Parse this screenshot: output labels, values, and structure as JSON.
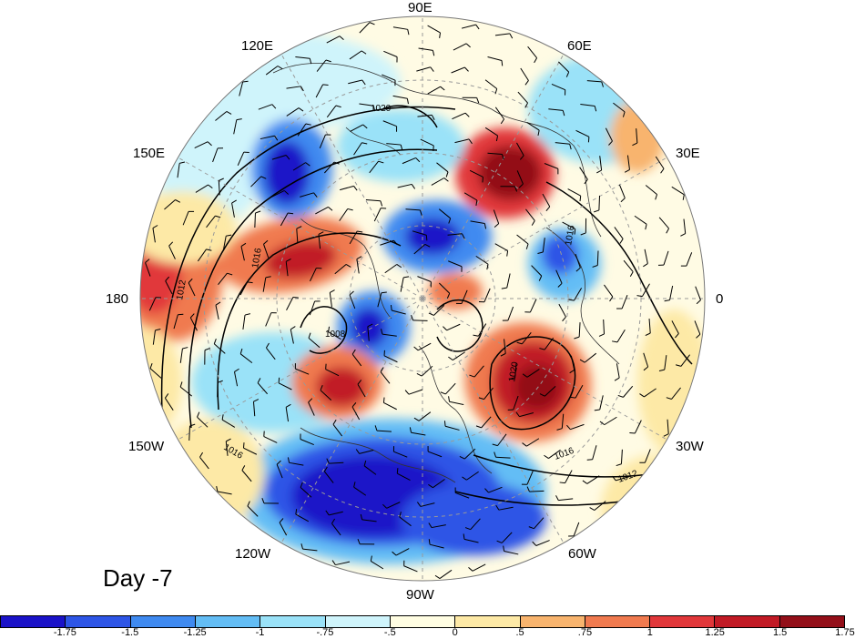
{
  "panel_label": "Day -7",
  "lon_labels": [
    "90E",
    "120E",
    "60E",
    "150E",
    "30E",
    "180",
    "0",
    "150W",
    "30W",
    "120W",
    "60W",
    "90W"
  ],
  "isobar_labels": [
    "1020",
    "1016",
    "1012",
    "1008",
    "1016",
    "1020",
    "1016",
    "1012",
    "1016"
  ],
  "colorbar": {
    "colors": [
      "#1a12c8",
      "#2d55e6",
      "#3f8af0",
      "#63bdf5",
      "#9ae2f8",
      "#cff4fb",
      "#fffde2",
      "#fde9a6",
      "#f8b46e",
      "#f07a4f",
      "#e1373a",
      "#c11a25",
      "#930f19"
    ],
    "tick_labels": [
      "-1.75",
      "-1.5",
      "-1.25",
      "-1",
      "-.75",
      "-.5",
      "0",
      ".5",
      ".75",
      "1",
      "1.25",
      "1.5",
      "1.75"
    ]
  }
}
